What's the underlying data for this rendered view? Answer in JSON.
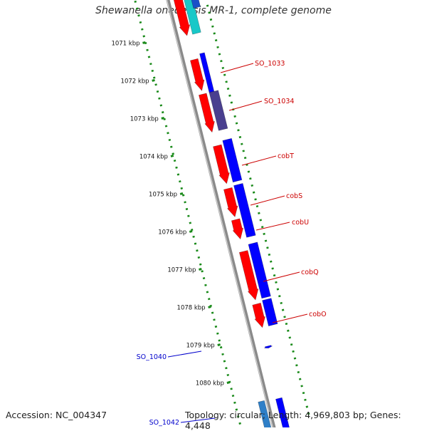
{
  "title": "Shewanella onedensis MR-1, complete genome",
  "footer": {
    "accession": "Accession: NC_004347",
    "summary": "Topology: circular; Length: 4,969,803 bp; Genes: 4,448"
  },
  "colors": {
    "forward_strand": "#ff0000",
    "reverse_strand": "#0000ff",
    "overlap": "#4a3f8f",
    "rna": "#18c8c8",
    "backbone": "#8a8a8a",
    "ticks": "#1a8a1a",
    "label_forward": "#cc0000",
    "label_reverse": "#0000cc"
  },
  "scale_ticks": [
    "1071 kbp",
    "1072 kbp",
    "1073 kbp",
    "1074 kbp",
    "1075 kbp",
    "1076 kbp",
    "1077 kbp",
    "1078 kbp",
    "1079 kbp",
    "1080 kbp"
  ],
  "gene_labels": [
    {
      "text": "SO_1033",
      "strand": "forward"
    },
    {
      "text": "SO_1034",
      "strand": "forward"
    },
    {
      "text": "cobT",
      "strand": "forward"
    },
    {
      "text": "cobS",
      "strand": "forward"
    },
    {
      "text": "cobU",
      "strand": "forward"
    },
    {
      "text": "cobQ",
      "strand": "forward"
    },
    {
      "text": "cobO",
      "strand": "forward"
    },
    {
      "text": "SO_1040",
      "strand": "reverse"
    },
    {
      "text": "SO_1042",
      "strand": "reverse"
    }
  ]
}
